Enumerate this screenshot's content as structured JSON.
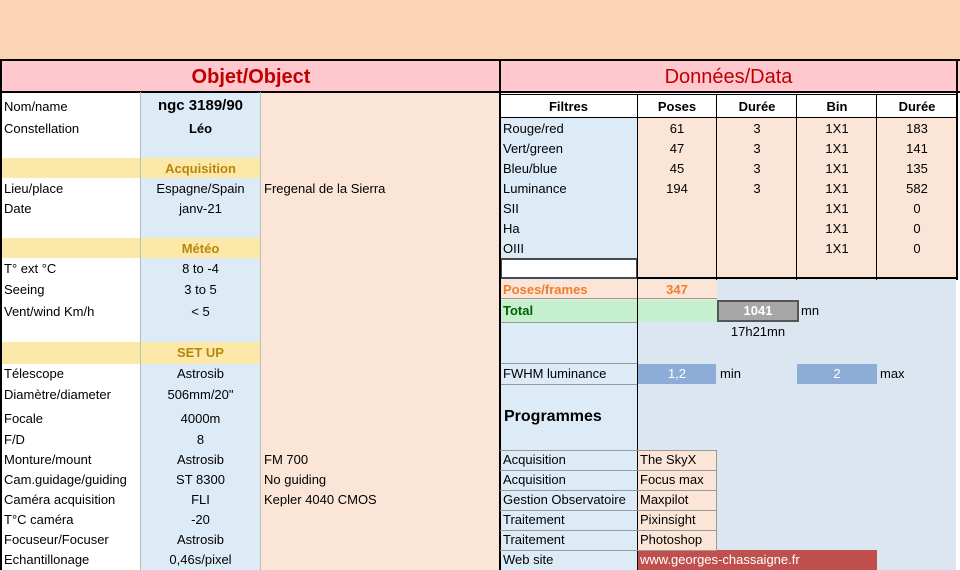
{
  "colors": {
    "peach": "#fbe5d6",
    "top_band": "#fad4b5",
    "pink_header": "#ffc7ce",
    "light_blue": "#ddebf7",
    "yellow_band": "#fce9a9",
    "gold_text": "#b8860b",
    "red_text": "#c00000",
    "orange_text": "#ed7d31",
    "green_total_bg": "#c6efce",
    "green_text": "#006100",
    "gray_total": "#a6a6a6",
    "fwhm_blue": "#8eacd8",
    "website_red": "#c0504d"
  },
  "object": {
    "title": "Objet/Object",
    "rows": [
      {
        "label": "Nom/name",
        "value": "ngc 3189/90",
        "extra": ""
      },
      {
        "label": "Constellation",
        "value": "Léo",
        "extra": ""
      },
      {
        "label": "",
        "value": "Acquisition",
        "extra": ""
      },
      {
        "label": "Lieu/place",
        "value": "Espagne/Spain",
        "extra": "Fregenal de la Sierra"
      },
      {
        "label": "Date",
        "value": "janv-21",
        "extra": ""
      },
      {
        "label": "",
        "value": "Météo",
        "extra": ""
      },
      {
        "label": "T° ext °C",
        "value": "8 to -4",
        "extra": ""
      },
      {
        "label": "Seeing",
        "value": "3 to 5",
        "extra": ""
      },
      {
        "label": "Vent/wind  Km/h",
        "value": "< 5",
        "extra": ""
      },
      {
        "label": "",
        "value": "SET UP",
        "extra": ""
      },
      {
        "label": "Télescope",
        "value": "Astrosib",
        "extra": ""
      },
      {
        "label": "Diamètre/diameter",
        "value": "506mm/20\"",
        "extra": ""
      },
      {
        "label": "Focale",
        "value": "4000m",
        "extra": ""
      },
      {
        "label": "F/D",
        "value": "8",
        "extra": ""
      },
      {
        "label": "Monture/mount",
        "value": "Astrosib",
        "extra": "FM 700"
      },
      {
        "label": "Cam.guidage/guiding",
        "value": "ST 8300",
        "extra": "No guiding"
      },
      {
        "label": "Caméra acquisition",
        "value": "FLI",
        "extra": "Kepler 4040 CMOS"
      },
      {
        "label": "T°C caméra",
        "value": "-20",
        "extra": ""
      },
      {
        "label": "Focuseur/Focuser",
        "value": "Astrosib",
        "extra": ""
      },
      {
        "label": "Echantillonage",
        "value": "0,46s/pixel",
        "extra": ""
      }
    ]
  },
  "data": {
    "title": "Données/Data",
    "headers": [
      "Filtres",
      "Poses",
      "Durée",
      "Bin",
      "Durée"
    ],
    "filters": [
      [
        "Rouge/red",
        "61",
        "3",
        "1X1",
        "183"
      ],
      [
        "Vert/green",
        "47",
        "3",
        "1X1",
        "141"
      ],
      [
        "Bleu/blue",
        "45",
        "3",
        "1X1",
        "135"
      ],
      [
        "Luminance",
        "194",
        "3",
        "1X1",
        "582"
      ],
      [
        "SII",
        "",
        "",
        "1X1",
        "0"
      ],
      [
        "Ha",
        "",
        "",
        "1X1",
        "0"
      ],
      [
        "OIII",
        "",
        "",
        "1X1",
        "0"
      ]
    ],
    "poses_label": "Poses/frames",
    "poses_value": "347",
    "total_label": "Total",
    "total_value": "1041",
    "total_unit": "mn",
    "total_hm": "17h21mn",
    "fwhm_label": "FWHM luminance",
    "fwhm_min": "1,2",
    "fwhm_min_label": "min",
    "fwhm_max": "2",
    "fwhm_max_label": "max",
    "programs_title": "Programmes",
    "programs": [
      [
        "Acquisition",
        "The SkyX"
      ],
      [
        "Acquisition",
        "Focus max"
      ],
      [
        "Gestion Observatoire",
        "Maxpilot"
      ],
      [
        "Traitement",
        "Pixinsight"
      ],
      [
        "Traitement",
        "Photoshop"
      ],
      [
        "Web site",
        "www.georges-chassaigne.fr"
      ]
    ]
  }
}
